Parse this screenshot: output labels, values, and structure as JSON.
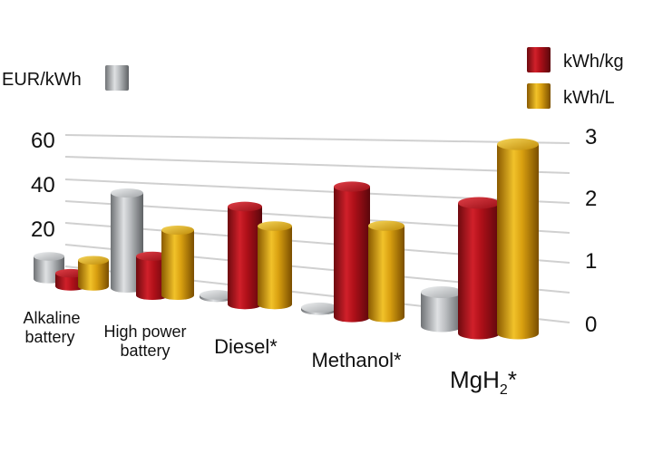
{
  "chart_data": {
    "type": "bar",
    "categories": [
      [
        "Alkaline",
        "battery"
      ],
      [
        "High power",
        "battery"
      ],
      [
        "Diesel*"
      ],
      [
        "Methanol*"
      ],
      [
        "MgH",
        "2",
        "*"
      ]
    ],
    "series": [
      {
        "name": "EUR/kWh",
        "axis": "left",
        "color": "#a9acae",
        "values": [
          10,
          42,
          1,
          1,
          15
        ]
      },
      {
        "name": "kWh/kg",
        "axis": "right",
        "color": "#b01019",
        "values": [
          0.2,
          0.6,
          1.5,
          2.0,
          2.0
        ]
      },
      {
        "name": "kWh/L",
        "axis": "right",
        "color": "#d9a010",
        "values": [
          0.4,
          1.0,
          1.2,
          1.4,
          2.9
        ]
      }
    ],
    "left_axis": {
      "ticks": [
        "60",
        "40",
        "20"
      ],
      "values": [
        60,
        40,
        20
      ],
      "unit_label": "EUR/kWh",
      "ylim": [
        0,
        60
      ]
    },
    "right_axis": {
      "ticks": [
        "3",
        "2",
        "1",
        "0"
      ],
      "values": [
        3,
        2,
        1,
        0
      ],
      "ylim": [
        0,
        3
      ]
    },
    "legend": [
      {
        "label": "kWh/kg",
        "color": "#b01019"
      },
      {
        "label": "kWh/L",
        "color": "#d9a010"
      }
    ],
    "grid": true
  }
}
